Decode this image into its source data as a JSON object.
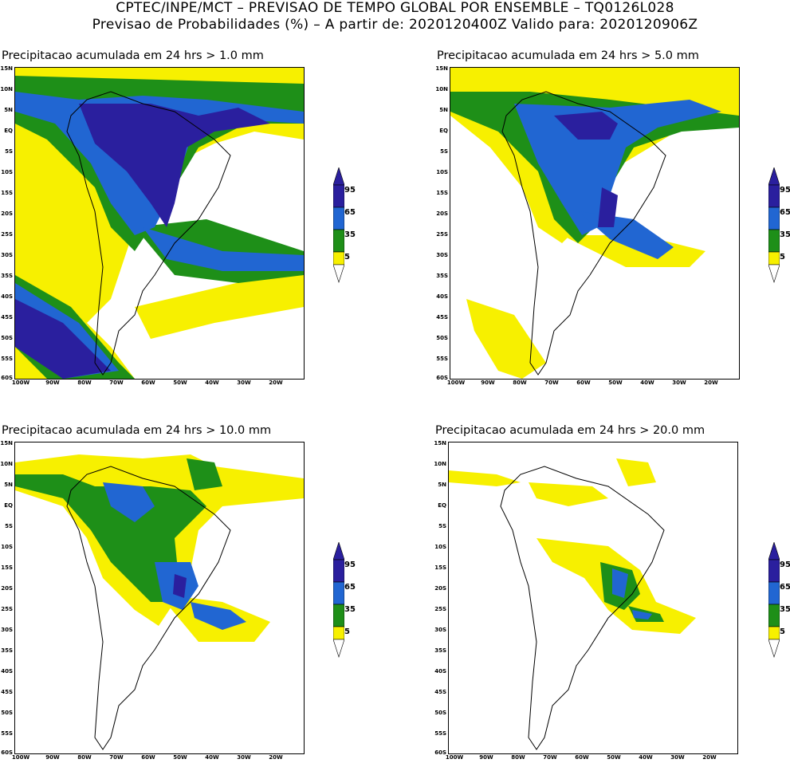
{
  "header": {
    "line1": "CPTEC/INPE/MCT – PREVISAO DE TEMPO GLOBAL POR ENSEMBLE – TQ0126L028",
    "line2": "Previsao de Probabilidades (%) –  A partir de: 2020120400Z  Valido para: 2020120906Z"
  },
  "axes": {
    "lat_labels": [
      "15N",
      "10N",
      "5N",
      "EQ",
      "5S",
      "10S",
      "15S",
      "20S",
      "25S",
      "30S",
      "35S",
      "40S",
      "45S",
      "50S",
      "55S",
      "60S"
    ],
    "lon_labels": [
      "100W",
      "90W",
      "80W",
      "70W",
      "60W",
      "50W",
      "40W",
      "30W",
      "20W"
    ]
  },
  "legend": {
    "levels": [
      "95",
      "65",
      "35",
      "5"
    ],
    "colors": {
      "c95": "#2a1f9e",
      "c65": "#2166d2",
      "c35": "#1e8f18",
      "c5": "#f7f000"
    }
  },
  "panels": [
    {
      "title": "Precipitacao acumulada em 24 hrs > 1.0 mm"
    },
    {
      "title": "Precipitacao acumulada em 24 hrs > 5.0 mm"
    },
    {
      "title": "Precipitacao acumulada em 24 hrs > 10.0 mm"
    },
    {
      "title": "Precipitacao acumulada em 24 hrs > 20.0 mm"
    }
  ]
}
